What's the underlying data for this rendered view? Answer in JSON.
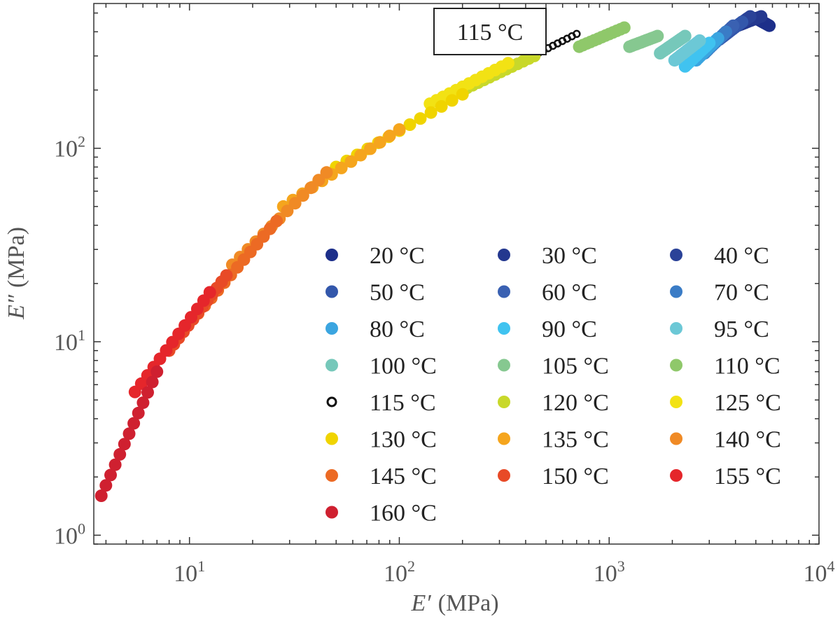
{
  "chart_data": {
    "type": "scatter",
    "x_scale": "log",
    "y_scale": "log",
    "xlim": [
      3.5,
      10000
    ],
    "ylim": [
      0.9,
      560
    ],
    "grid": false,
    "legend_placement": "lower-right",
    "title": "",
    "xlabel": {
      "symbol": "E′",
      "unit": "(MPa)"
    },
    "ylabel": {
      "symbol": "E″",
      "unit": "(MPa)"
    },
    "x_ticks": [
      {
        "value": 10,
        "base": "10",
        "exp": "1"
      },
      {
        "value": 100,
        "base": "10",
        "exp": "2"
      },
      {
        "value": 1000,
        "base": "10",
        "exp": "3"
      },
      {
        "value": 10000,
        "base": "10",
        "exp": "4"
      }
    ],
    "y_ticks": [
      {
        "value": 1,
        "base": "10",
        "exp": "0"
      },
      {
        "value": 10,
        "base": "10",
        "exp": "1"
      },
      {
        "value": 100,
        "base": "10",
        "exp": "2"
      }
    ],
    "annotation": {
      "text": "115 °C",
      "points_to": [
        700,
        390
      ]
    },
    "series": [
      {
        "name": "20 °C",
        "color": "#1d2f8a",
        "hollow": false,
        "x_range": [
          5000,
          5800
        ],
        "y_range": [
          470,
          430
        ]
      },
      {
        "name": "30 °C",
        "color": "#24388f",
        "hollow": false,
        "x_range": [
          4100,
          5300
        ],
        "y_range": [
          430,
          480
        ]
      },
      {
        "name": "40 °C",
        "color": "#2a4298",
        "hollow": false,
        "x_range": [
          3700,
          4700
        ],
        "y_range": [
          400,
          480
        ]
      },
      {
        "name": "50 °C",
        "color": "#3357ab",
        "hollow": false,
        "x_range": [
          3350,
          4300
        ],
        "y_range": [
          365,
          450
        ]
      },
      {
        "name": "60 °C",
        "color": "#3a61b2",
        "hollow": false,
        "x_range": [
          3100,
          3900
        ],
        "y_range": [
          340,
          430
        ]
      },
      {
        "name": "70 °C",
        "color": "#3a7cc6",
        "hollow": false,
        "x_range": [
          2850,
          3600
        ],
        "y_range": [
          310,
          400
        ]
      },
      {
        "name": "80 °C",
        "color": "#3ba5e0",
        "hollow": false,
        "x_range": [
          2600,
          3300
        ],
        "y_range": [
          285,
          370
        ]
      },
      {
        "name": "90 °C",
        "color": "#40c3f0",
        "hollow": false,
        "x_range": [
          2300,
          3000
        ],
        "y_range": [
          265,
          350
        ]
      },
      {
        "name": "95 °C",
        "color": "#6cc8d6",
        "hollow": false,
        "x_range": [
          2050,
          2700
        ],
        "y_range": [
          285,
          360
        ]
      },
      {
        "name": "100 °C",
        "color": "#76c8ba",
        "hollow": false,
        "x_range": [
          1750,
          2300
        ],
        "y_range": [
          310,
          380
        ]
      },
      {
        "name": "105 °C",
        "color": "#86c890",
        "hollow": false,
        "x_range": [
          1250,
          1700
        ],
        "y_range": [
          335,
          380
        ]
      },
      {
        "name": "110 °C",
        "color": "#8fc86a",
        "hollow": false,
        "x_range": [
          720,
          1180
        ],
        "y_range": [
          335,
          420
        ]
      },
      {
        "name": "115 °C",
        "color": "#111111",
        "hollow": true,
        "x_range": [
          320,
          700
        ],
        "y_range": [
          255,
          390
        ]
      },
      {
        "name": "120 °C",
        "color": "#c8d82a",
        "hollow": false,
        "x_range": [
          210,
          440
        ],
        "y_range": [
          205,
          300
        ]
      },
      {
        "name": "125 °C",
        "color": "#f2e214",
        "hollow": false,
        "x_range": [
          140,
          330
        ],
        "y_range": [
          170,
          275
        ]
      },
      {
        "name": "130 °C",
        "color": "#f0d400",
        "hollow": false,
        "x_range": [
          50,
          200
        ],
        "y_range": [
          80,
          190
        ]
      },
      {
        "name": "135 °C",
        "color": "#f5a51d",
        "hollow": false,
        "x_range": [
          28,
          100
        ],
        "y_range": [
          50,
          125
        ]
      },
      {
        "name": "140 °C",
        "color": "#f08a25",
        "hollow": false,
        "x_range": [
          16,
          45
        ],
        "y_range": [
          25,
          75
        ]
      },
      {
        "name": "145 °C",
        "color": "#ec6a24",
        "hollow": false,
        "x_range": [
          11,
          26
        ],
        "y_range": [
          14,
          42
        ]
      },
      {
        "name": "150 °C",
        "color": "#e84a27",
        "hollow": false,
        "x_range": [
          8,
          15
        ],
        "y_range": [
          9,
          22
        ]
      },
      {
        "name": "155 °C",
        "color": "#e5262b",
        "hollow": false,
        "x_range": [
          5.5,
          12.5
        ],
        "y_range": [
          5.5,
          18
        ]
      },
      {
        "name": "160 °C",
        "color": "#cf2030",
        "hollow": false,
        "x_range": [
          3.8,
          7
        ],
        "y_range": [
          1.6,
          7
        ]
      }
    ]
  }
}
